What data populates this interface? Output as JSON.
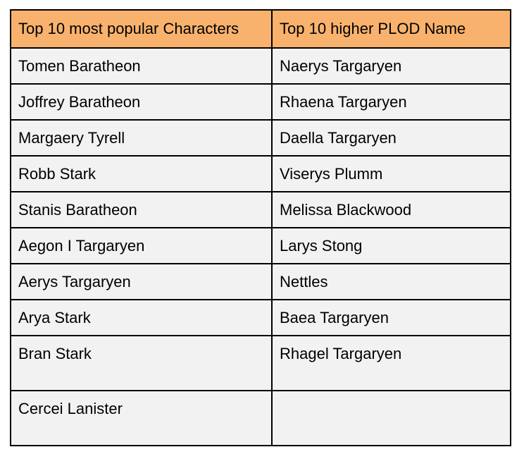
{
  "table": {
    "headers": [
      "Top 10 most popular Characters",
      "Top 10 higher PLOD Name"
    ],
    "rows": [
      [
        "Tomen Baratheon",
        "Naerys Targaryen"
      ],
      [
        "Joffrey Baratheon",
        "Rhaena Targaryen"
      ],
      [
        "Margaery Tyrell",
        "Daella Targaryen"
      ],
      [
        "Robb Stark",
        "Viserys Plumm"
      ],
      [
        "Stanis Baratheon",
        "Melissa Blackwood"
      ],
      [
        "Aegon I Targaryen",
        "Larys Stong"
      ],
      [
        "Aerys Targaryen",
        "Nettles"
      ],
      [
        "Arya Stark",
        "Baea Targaryen"
      ],
      [
        "Bran Stark",
        "Rhagel Targaryen"
      ],
      [
        "Cercei Lanister",
        ""
      ]
    ]
  },
  "colors": {
    "header_bg": "#f9b26d",
    "cell_bg": "#f2f2f2",
    "border": "#000000"
  }
}
